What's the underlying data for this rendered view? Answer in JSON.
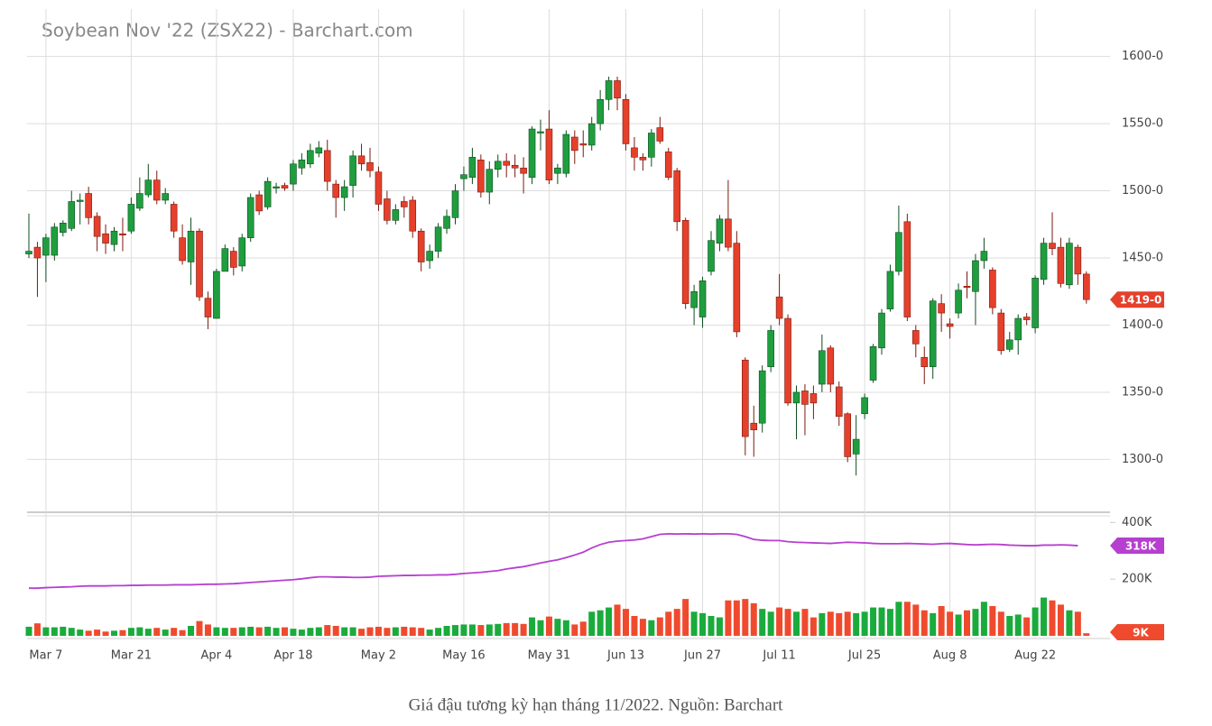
{
  "caption": "Giá đậu tương kỳ hạn tháng 11/2022. Nguồn: Barchart",
  "chart_data": [
    {
      "type": "candlestick",
      "title": "Soybean Nov '22 (ZSX22) - Barchart.com",
      "categories": [
        null,
        null,
        "Mar 7",
        null,
        null,
        null,
        null,
        null,
        null,
        null,
        null,
        null,
        "Mar 21",
        null,
        null,
        null,
        null,
        null,
        null,
        null,
        null,
        null,
        "Apr 4",
        null,
        null,
        null,
        null,
        null,
        null,
        null,
        null,
        "Apr 18",
        null,
        null,
        null,
        null,
        null,
        null,
        null,
        null,
        null,
        "May 2",
        null,
        null,
        null,
        null,
        null,
        null,
        null,
        null,
        null,
        "May 16",
        null,
        null,
        null,
        null,
        null,
        null,
        null,
        null,
        null,
        "May 31",
        null,
        null,
        null,
        null,
        null,
        null,
        null,
        null,
        "Jun 13",
        null,
        null,
        null,
        null,
        null,
        null,
        null,
        null,
        "Jun 27",
        null,
        null,
        null,
        null,
        null,
        null,
        null,
        null,
        "Jul 11",
        null,
        null,
        null,
        null,
        null,
        null,
        null,
        null,
        null,
        "Jul 25",
        null,
        null,
        null,
        null,
        null,
        null,
        null,
        null,
        null,
        "Aug 8",
        null,
        null,
        null,
        null,
        null,
        null,
        null,
        null,
        null,
        "Aug 22",
        null,
        null,
        null,
        null,
        null,
        null
      ],
      "open": [
        1453,
        1458,
        1452,
        1452,
        1469,
        1472,
        1492,
        1498,
        1481,
        1468,
        1460,
        1468,
        1470,
        1487,
        1497,
        1508,
        1493,
        1490,
        1465,
        1447,
        1470,
        1420,
        1405,
        1440,
        1455,
        1444,
        1465,
        1497,
        1488,
        1502,
        1504,
        1505,
        1517,
        1520,
        1528,
        1530,
        1505,
        1495,
        1504,
        1526,
        1521,
        1514,
        1494,
        1478,
        1492,
        1493,
        1470,
        1448,
        1455,
        1472,
        1480,
        1509,
        1510,
        1523,
        1499,
        1516,
        1522,
        1519,
        1517,
        1510,
        1543,
        1546,
        1513,
        1513,
        1540,
        1535,
        1534,
        1550,
        1568,
        1582,
        1568,
        1532,
        1525,
        1525,
        1547,
        1529,
        1515,
        1478,
        1413,
        1406,
        1440,
        1461,
        1479,
        1461,
        1374,
        1327,
        1327,
        1369,
        1421,
        1405,
        1342,
        1351,
        1349,
        1356,
        1383,
        1354,
        1334,
        1304,
        1334,
        1359,
        1383,
        1412,
        1440,
        1477,
        1396,
        1376,
        1369,
        1416,
        1401,
        1409,
        1429,
        1425,
        1448,
        1441,
        1409,
        1382,
        1389,
        1406,
        1398,
        1434,
        1461,
        1458,
        1430,
        1458,
        1438
      ],
      "high": [
        1483,
        1462,
        1468,
        1476,
        1478,
        1500,
        1498,
        1503,
        1484,
        1475,
        1473,
        1480,
        1495,
        1510,
        1520,
        1515,
        1502,
        1492,
        1475,
        1480,
        1472,
        1425,
        1442,
        1460,
        1458,
        1468,
        1498,
        1500,
        1510,
        1506,
        1506,
        1523,
        1528,
        1535,
        1537,
        1538,
        1508,
        1508,
        1530,
        1535,
        1532,
        1518,
        1500,
        1490,
        1496,
        1496,
        1472,
        1460,
        1476,
        1486,
        1505,
        1518,
        1532,
        1527,
        1522,
        1527,
        1528,
        1527,
        1525,
        1548,
        1553,
        1560,
        1520,
        1545,
        1545,
        1545,
        1555,
        1575,
        1585,
        1585,
        1572,
        1540,
        1528,
        1546,
        1555,
        1532,
        1517,
        1480,
        1430,
        1436,
        1470,
        1482,
        1508,
        1470,
        1376,
        1340,
        1370,
        1400,
        1438,
        1408,
        1355,
        1356,
        1355,
        1393,
        1385,
        1358,
        1335,
        1333,
        1349,
        1386,
        1412,
        1445,
        1489,
        1483,
        1400,
        1384,
        1420,
        1423,
        1405,
        1431,
        1440,
        1453,
        1465,
        1443,
        1412,
        1395,
        1408,
        1409,
        1437,
        1465,
        1484,
        1465,
        1465,
        1460,
        1440
      ],
      "low": [
        1450,
        1421,
        1432,
        1448,
        1466,
        1470,
        1475,
        1475,
        1455,
        1453,
        1455,
        1455,
        1468,
        1485,
        1495,
        1490,
        1490,
        1465,
        1445,
        1430,
        1418,
        1397,
        1405,
        1440,
        1437,
        1440,
        1462,
        1482,
        1486,
        1498,
        1500,
        1500,
        1512,
        1517,
        1525,
        1500,
        1480,
        1485,
        1495,
        1515,
        1510,
        1485,
        1475,
        1475,
        1480,
        1465,
        1440,
        1442,
        1450,
        1468,
        1475,
        1500,
        1505,
        1495,
        1490,
        1510,
        1510,
        1510,
        1498,
        1505,
        1530,
        1505,
        1505,
        1510,
        1520,
        1525,
        1530,
        1545,
        1560,
        1560,
        1530,
        1515,
        1515,
        1518,
        1535,
        1508,
        1470,
        1412,
        1400,
        1398,
        1437,
        1455,
        1455,
        1391,
        1303,
        1302,
        1320,
        1365,
        1400,
        1340,
        1315,
        1318,
        1330,
        1350,
        1350,
        1325,
        1298,
        1288,
        1330,
        1357,
        1378,
        1410,
        1437,
        1403,
        1376,
        1356,
        1360,
        1395,
        1390,
        1405,
        1420,
        1400,
        1442,
        1408,
        1378,
        1380,
        1378,
        1400,
        1394,
        1430,
        1452,
        1428,
        1427,
        1430,
        1416
      ],
      "close": [
        1455,
        1450,
        1465,
        1473,
        1476,
        1492,
        1493,
        1480,
        1466,
        1461,
        1470,
        1467,
        1490,
        1498,
        1508,
        1493,
        1498,
        1470,
        1448,
        1470,
        1421,
        1406,
        1440,
        1457,
        1443,
        1465,
        1495,
        1485,
        1507,
        1503,
        1502,
        1520,
        1523,
        1530,
        1532,
        1507,
        1495,
        1503,
        1526,
        1520,
        1515,
        1490,
        1478,
        1486,
        1488,
        1470,
        1447,
        1455,
        1473,
        1481,
        1500,
        1512,
        1525,
        1499,
        1516,
        1522,
        1519,
        1517,
        1513,
        1546,
        1544,
        1508,
        1517,
        1542,
        1530,
        1534,
        1550,
        1568,
        1582,
        1569,
        1535,
        1525,
        1523,
        1543,
        1537,
        1510,
        1477,
        1416,
        1425,
        1433,
        1463,
        1479,
        1458,
        1395,
        1317,
        1322,
        1366,
        1396,
        1405,
        1342,
        1350,
        1341,
        1342,
        1381,
        1356,
        1332,
        1302,
        1315,
        1346,
        1384,
        1409,
        1440,
        1469,
        1406,
        1386,
        1369,
        1418,
        1409,
        1399,
        1426,
        1428,
        1448,
        1455,
        1413,
        1381,
        1389,
        1405,
        1404,
        1435,
        1461,
        1457,
        1431,
        1461,
        1438,
        1419
      ],
      "up_color": "#1f9e3f",
      "down_color": "#e5402b",
      "ylim": [
        1262,
        1634
      ],
      "yticks": [
        {
          "value": 1300,
          "label": "1300-0"
        },
        {
          "value": 1350,
          "label": "1350-0"
        },
        {
          "value": 1400,
          "label": "1400-0"
        },
        {
          "value": 1450,
          "label": "1450-0"
        },
        {
          "value": 1500,
          "label": "1500-0"
        },
        {
          "value": 1550,
          "label": "1550-0"
        },
        {
          "value": 1600,
          "label": "1600-0"
        }
      ],
      "last_label": "1419-0",
      "grid": true
    },
    {
      "type": "bar",
      "volume": {
        "values": [
          32000,
          44000,
          30000,
          30000,
          32000,
          28000,
          22000,
          18000,
          22000,
          15000,
          18000,
          20000,
          28000,
          30000,
          25000,
          28000,
          22000,
          28000,
          20000,
          35000,
          52000,
          40000,
          30000,
          28000,
          28000,
          30000,
          32000,
          30000,
          32000,
          28000,
          30000,
          25000,
          22000,
          28000,
          30000,
          38000,
          35000,
          30000,
          30000,
          25000,
          30000,
          32000,
          28000,
          30000,
          32000,
          30000,
          28000,
          22000,
          28000,
          35000,
          38000,
          40000,
          40000,
          38000,
          40000,
          42000,
          45000,
          45000,
          42000,
          65000,
          55000,
          68000,
          60000,
          55000,
          40000,
          50000,
          85000,
          90000,
          100000,
          110000,
          95000,
          70000,
          60000,
          55000,
          65000,
          85000,
          95000,
          130000,
          85000,
          80000,
          70000,
          65000,
          125000,
          125000,
          130000,
          115000,
          95000,
          85000,
          100000,
          95000,
          85000,
          95000,
          65000,
          80000,
          85000,
          80000,
          85000,
          80000,
          85000,
          100000,
          100000,
          95000,
          120000,
          120000,
          110000,
          90000,
          80000,
          105000,
          85000,
          75000,
          90000,
          95000,
          120000,
          105000,
          85000,
          70000,
          75000,
          65000,
          100000,
          135000,
          125000,
          110000,
          90000,
          85000,
          9000
        ],
        "up_color": "#1aab3c",
        "down_color": "#f04a2e",
        "last_label": "9K"
      },
      "open_interest": {
        "values": [
          168000,
          168000,
          170000,
          171000,
          172000,
          173000,
          175000,
          176000,
          176000,
          176000,
          177000,
          177000,
          178000,
          178000,
          179000,
          179000,
          179000,
          180000,
          180000,
          180000,
          181000,
          182000,
          182000,
          183000,
          184000,
          186000,
          188000,
          190000,
          192000,
          194000,
          196000,
          198000,
          201000,
          205000,
          208000,
          208000,
          207000,
          207000,
          206000,
          206000,
          207000,
          210000,
          211000,
          212000,
          213000,
          213000,
          214000,
          214000,
          215000,
          215000,
          217000,
          220000,
          222000,
          224000,
          227000,
          230000,
          236000,
          240000,
          244000,
          250000,
          257000,
          263000,
          268000,
          276000,
          285000,
          295000,
          310000,
          322000,
          330000,
          334000,
          336000,
          338000,
          342000,
          350000,
          358000,
          360000,
          359000,
          360000,
          359000,
          360000,
          359000,
          360000,
          360000,
          358000,
          350000,
          340000,
          337000,
          336000,
          336000,
          332000,
          330000,
          329000,
          328000,
          327000,
          326000,
          328000,
          330000,
          329000,
          328000,
          326000,
          325000,
          325000,
          325000,
          326000,
          325000,
          324000,
          323000,
          325000,
          326000,
          324000,
          322000,
          321000,
          322000,
          323000,
          322000,
          320000,
          319000,
          318000,
          318000,
          320000,
          320000,
          321000,
          320000,
          318000,
          null
        ],
        "color": "#b63fd0",
        "last_label": "318K"
      },
      "ylim": [
        0,
        420000
      ],
      "yticks": [
        {
          "value": 200000,
          "label": "200K"
        },
        {
          "value": 400000,
          "label": "400K"
        }
      ]
    }
  ]
}
